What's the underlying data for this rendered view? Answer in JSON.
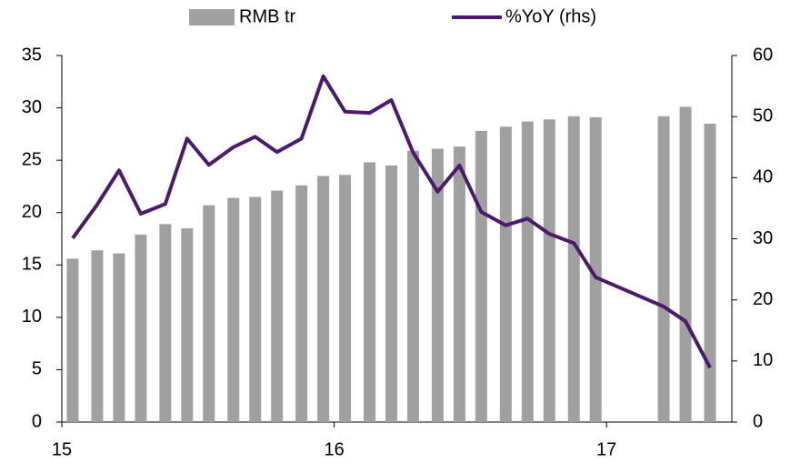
{
  "chart_data": {
    "type": "bar",
    "xlim": [
      15,
      17.46
    ],
    "xticks": [
      15,
      16,
      17
    ],
    "ylim": [
      0,
      35
    ],
    "yticks": [
      0,
      5,
      10,
      15,
      20,
      25,
      30,
      35
    ],
    "y2lim": [
      0,
      60
    ],
    "y2ticks": [
      0,
      10,
      20,
      30,
      40,
      50,
      60
    ],
    "series": [
      {
        "name": "RMB tr",
        "type": "bar",
        "color": "#a0a0a0",
        "x": [
          15.04,
          15.13,
          15.21,
          15.29,
          15.38,
          15.46,
          15.54,
          15.63,
          15.71,
          15.79,
          15.88,
          15.96,
          16.04,
          16.13,
          16.21,
          16.29,
          16.38,
          16.46,
          16.54,
          16.63,
          16.71,
          16.79,
          16.88,
          16.96,
          17.21,
          17.29,
          17.38
        ],
        "values": [
          15.6,
          16.4,
          16.1,
          17.9,
          18.9,
          18.5,
          20.7,
          21.4,
          21.5,
          22.1,
          22.6,
          23.5,
          23.6,
          24.8,
          24.5,
          25.9,
          26.1,
          26.3,
          27.8,
          28.2,
          28.7,
          28.9,
          29.2,
          29.1,
          29.2,
          30.1,
          28.5
        ]
      },
      {
        "name": "%YoY (rhs)",
        "type": "line",
        "axis": "y2",
        "color": "#4b1a6b",
        "x": [
          15.04,
          15.13,
          15.21,
          15.29,
          15.38,
          15.46,
          15.54,
          15.63,
          15.71,
          15.79,
          15.88,
          15.96,
          16.04,
          16.13,
          16.21,
          16.29,
          16.38,
          16.46,
          16.54,
          16.63,
          16.71,
          16.79,
          16.88,
          16.96,
          17.21,
          17.29,
          17.38
        ],
        "values": [
          30.1,
          35.6,
          41.2,
          34.1,
          35.7,
          46.4,
          42.1,
          45.0,
          46.7,
          44.2,
          46.4,
          56.6,
          50.8,
          50.6,
          52.7,
          44.1,
          37.7,
          42.0,
          34.4,
          32.2,
          33.3,
          30.8,
          29.3,
          23.7,
          18.9,
          16.5,
          8.9
        ]
      }
    ]
  }
}
